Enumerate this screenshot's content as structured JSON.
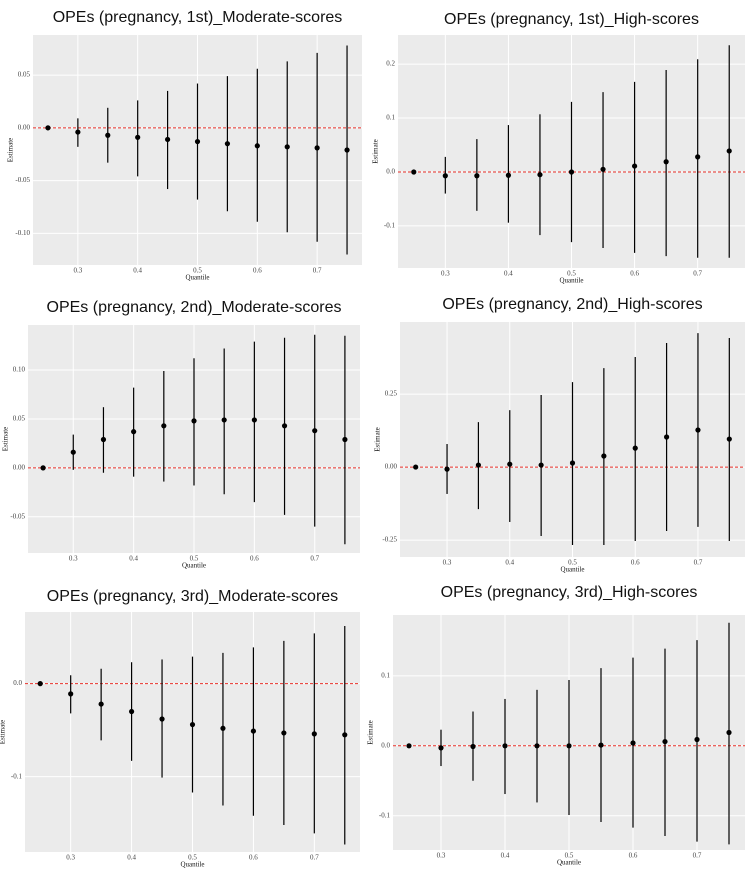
{
  "chart_data": [
    {
      "type": "errorbar",
      "title": "OPEs (pregnancy, 1st)_Moderate-scores",
      "x_label": "Quantile",
      "y_label": "Estimate",
      "x": [
        0.25,
        0.3,
        0.35,
        0.4,
        0.45,
        0.5,
        0.55,
        0.6,
        0.65,
        0.7,
        0.75
      ],
      "values": [
        0,
        -0.004,
        -0.007,
        -0.009,
        -0.011,
        -0.013,
        -0.015,
        -0.017,
        -0.018,
        -0.019,
        -0.021
      ],
      "lower": [
        null,
        -0.018,
        -0.033,
        -0.046,
        -0.058,
        -0.068,
        -0.079,
        -0.089,
        -0.099,
        -0.108,
        -0.12
      ],
      "upper": [
        null,
        0.009,
        0.019,
        0.026,
        0.035,
        0.042,
        0.049,
        0.056,
        0.063,
        0.071,
        0.078
      ],
      "xlim": [
        0.225,
        0.775
      ],
      "xticks": [
        0.3,
        0.4,
        0.5,
        0.6,
        0.7
      ],
      "ylim": [
        -0.13,
        0.088
      ],
      "yticks": [
        {
          "value": -0.1,
          "label": "-0.10"
        },
        {
          "value": -0.05,
          "label": "-0.05"
        },
        {
          "value": 0,
          "label": "0.00"
        },
        {
          "value": 0.05,
          "label": "0.05"
        }
      ],
      "reference_line": 0,
      "grid": true,
      "color": "#000000"
    },
    {
      "type": "errorbar",
      "title": "OPEs (pregnancy, 1st)_High-scores",
      "x_label": "Quantile",
      "y_label": "Estimate",
      "x": [
        0.25,
        0.3,
        0.35,
        0.4,
        0.45,
        0.5,
        0.55,
        0.6,
        0.65,
        0.7,
        0.75
      ],
      "values": [
        0,
        -0.007,
        -0.007,
        -0.006,
        -0.005,
        0,
        0.005,
        0.011,
        0.019,
        0.028,
        0.039
      ],
      "lower": [
        null,
        -0.04,
        -0.072,
        -0.094,
        -0.117,
        -0.13,
        -0.141,
        -0.15,
        -0.156,
        -0.159,
        -0.159
      ],
      "upper": [
        null,
        0.028,
        0.061,
        0.087,
        0.107,
        0.13,
        0.148,
        0.167,
        0.189,
        0.209,
        0.235
      ],
      "xlim": [
        0.225,
        0.775
      ],
      "xticks": [
        0.3,
        0.4,
        0.5,
        0.6,
        0.7
      ],
      "ylim": [
        -0.178,
        0.254
      ],
      "yticks": [
        -0.1,
        {
          "value": 0,
          "label": "0.0"
        },
        0.1,
        0.2
      ],
      "reference_line": 0,
      "grid": true,
      "color": "#000000"
    },
    {
      "type": "errorbar",
      "title": "OPEs (pregnancy, 2nd)_Moderate-scores",
      "x_label": "Quantile",
      "y_label": "Estimate",
      "x": [
        0.25,
        0.3,
        0.35,
        0.4,
        0.45,
        0.5,
        0.55,
        0.6,
        0.65,
        0.7,
        0.75
      ],
      "values": [
        0,
        0.016,
        0.029,
        0.037,
        0.043,
        0.048,
        0.049,
        0.049,
        0.043,
        0.038,
        0.029
      ],
      "lower": [
        null,
        -0.002,
        -0.005,
        -0.009,
        -0.014,
        -0.018,
        -0.027,
        -0.035,
        -0.048,
        -0.06,
        -0.078
      ],
      "upper": [
        null,
        0.034,
        0.062,
        0.082,
        0.099,
        0.112,
        0.122,
        0.129,
        0.133,
        0.136,
        0.135
      ],
      "xlim": [
        0.225,
        0.775
      ],
      "xticks": [
        0.3,
        0.4,
        0.5,
        0.6,
        0.7
      ],
      "ylim": [
        -0.087,
        0.146
      ],
      "yticks": [
        {
          "value": -0.05,
          "label": "-0.05"
        },
        {
          "value": 0,
          "label": "0.00"
        },
        {
          "value": 0.05,
          "label": "0.05"
        },
        {
          "value": 0.1,
          "label": "0.10"
        }
      ],
      "reference_line": 0,
      "grid": true,
      "color": "#000000"
    },
    {
      "type": "errorbar",
      "title": "OPEs (pregnancy, 2nd)_High-scores",
      "x_label": "Quantile",
      "y_label": "Estimate",
      "x": [
        0.25,
        0.3,
        0.35,
        0.4,
        0.45,
        0.5,
        0.55,
        0.6,
        0.65,
        0.7,
        0.75
      ],
      "values": [
        0,
        -0.007,
        0.007,
        0.01,
        0.007,
        0.014,
        0.038,
        0.065,
        0.103,
        0.127,
        0.096
      ],
      "lower": [
        null,
        -0.092,
        -0.144,
        -0.188,
        -0.236,
        -0.267,
        -0.267,
        -0.253,
        -0.219,
        -0.205,
        -0.253
      ],
      "upper": [
        null,
        0.079,
        0.154,
        0.195,
        0.247,
        0.291,
        0.339,
        0.377,
        0.425,
        0.459,
        0.442
      ],
      "xlim": [
        0.225,
        0.775
      ],
      "xticks": [
        0.3,
        0.4,
        0.5,
        0.6,
        0.7
      ],
      "ylim": [
        -0.308,
        0.497
      ],
      "yticks": [
        {
          "value": -0.25,
          "label": "-0.25"
        },
        {
          "value": 0,
          "label": "0.00"
        },
        0.25
      ],
      "reference_line": 0,
      "grid": true,
      "color": "#000000"
    },
    {
      "type": "errorbar",
      "title": "OPEs (pregnancy, 3rd)_Moderate-scores",
      "x_label": "Quantile",
      "y_label": "Estimate",
      "x": [
        0.25,
        0.3,
        0.35,
        0.4,
        0.45,
        0.5,
        0.55,
        0.6,
        0.65,
        0.7,
        0.75
      ],
      "values": [
        0,
        -0.011,
        -0.022,
        -0.03,
        -0.038,
        -0.044,
        -0.048,
        -0.051,
        -0.053,
        -0.054,
        -0.055
      ],
      "lower": [
        null,
        -0.032,
        -0.061,
        -0.083,
        -0.101,
        -0.117,
        -0.131,
        -0.142,
        -0.152,
        -0.161,
        -0.173
      ],
      "upper": [
        null,
        0.009,
        0.016,
        0.023,
        0.026,
        0.029,
        0.033,
        0.039,
        0.046,
        0.054,
        0.062
      ],
      "xlim": [
        0.225,
        0.775
      ],
      "xticks": [
        0.3,
        0.4,
        0.5,
        0.6,
        0.7
      ],
      "ylim": [
        -0.181,
        0.077
      ],
      "yticks": [
        -0.1,
        {
          "value": 0,
          "label": "0.0"
        }
      ],
      "reference_line": 0,
      "grid": true,
      "color": "#000000"
    },
    {
      "type": "errorbar",
      "title": "OPEs (pregnancy, 3rd)_High-scores",
      "x_label": "Quantile",
      "y_label": "Estimate",
      "x": [
        0.25,
        0.3,
        0.35,
        0.4,
        0.45,
        0.5,
        0.55,
        0.6,
        0.65,
        0.7,
        0.75
      ],
      "values": [
        0,
        -0.003,
        -0.001,
        0,
        0,
        0,
        0.001,
        0.004,
        0.006,
        0.009,
        0.019
      ],
      "lower": [
        null,
        -0.029,
        -0.05,
        -0.069,
        -0.081,
        -0.099,
        -0.109,
        -0.117,
        -0.129,
        -0.137,
        -0.141
      ],
      "upper": [
        null,
        0.023,
        0.049,
        0.067,
        0.08,
        0.094,
        0.111,
        0.126,
        0.139,
        0.151,
        0.176
      ],
      "xlim": [
        0.225,
        0.775
      ],
      "xticks": [
        0.3,
        0.4,
        0.5,
        0.6,
        0.7
      ],
      "ylim": [
        -0.149,
        0.187
      ],
      "yticks": [
        -0.1,
        {
          "value": 0,
          "label": "0.0"
        },
        0.1
      ],
      "reference_line": 0,
      "grid": true,
      "color": "#000000"
    }
  ]
}
